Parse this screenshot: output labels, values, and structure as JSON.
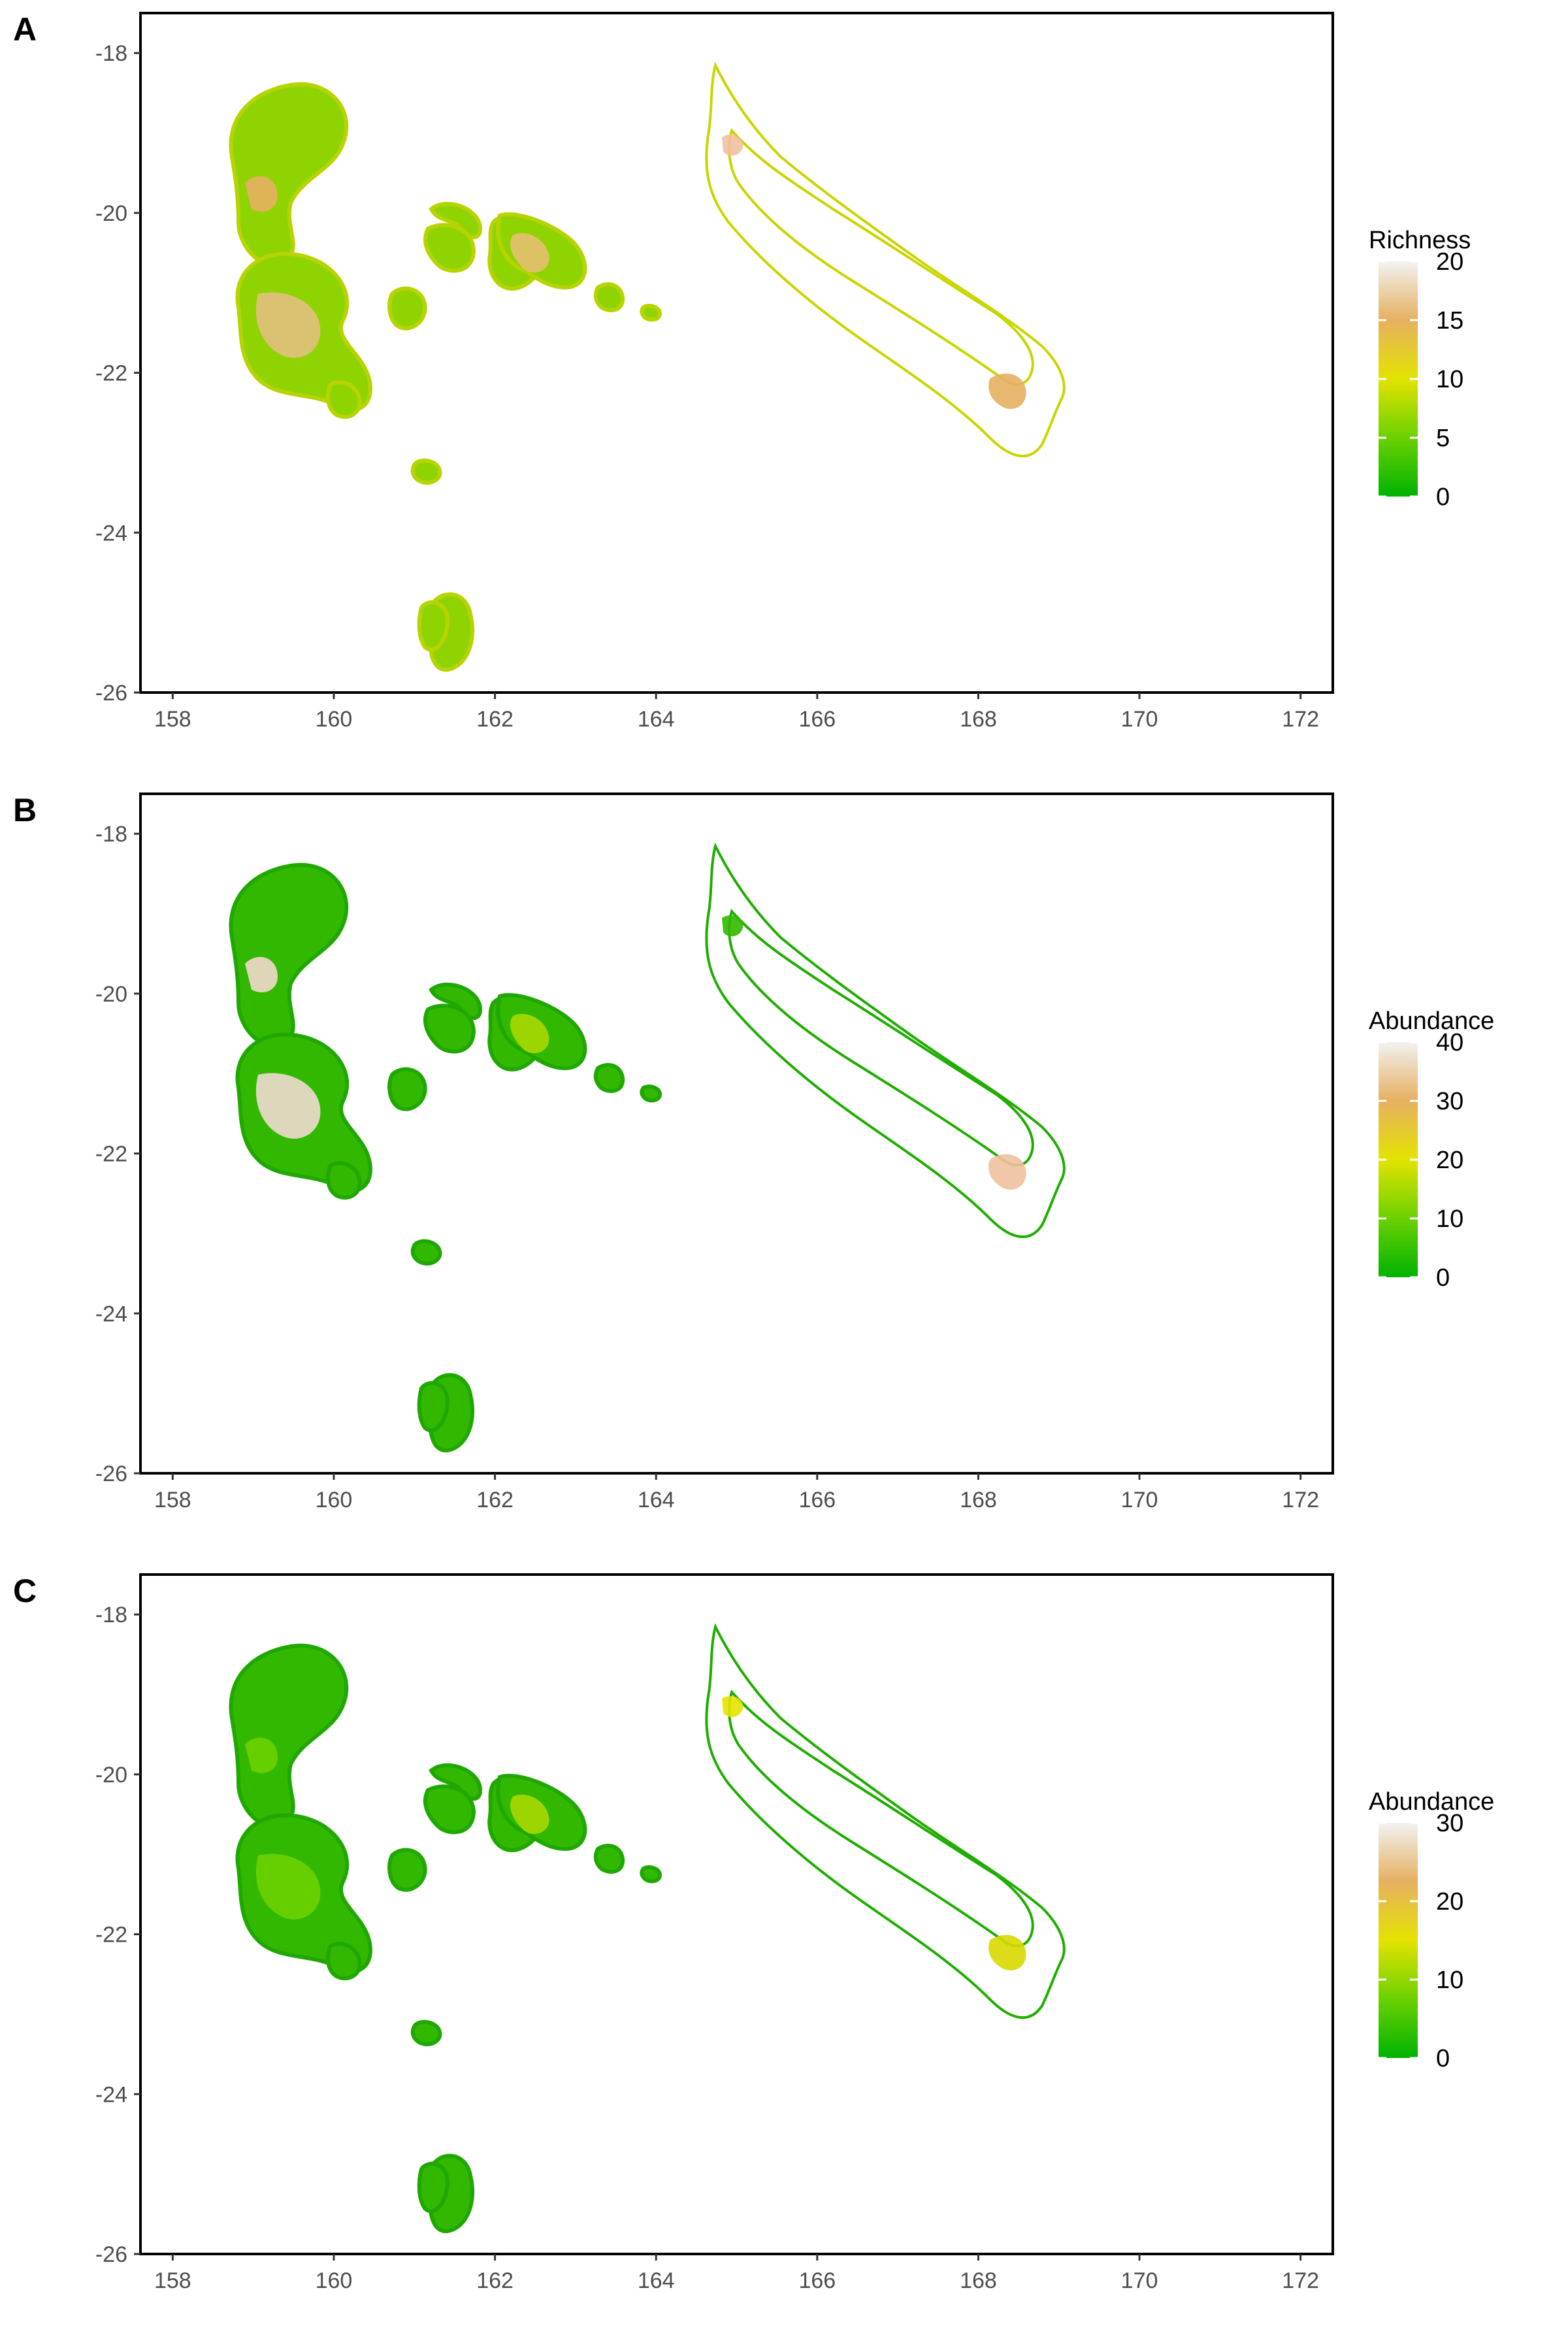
{
  "chart_data": [
    {
      "type": "heatmap",
      "panel_label": "A",
      "legend_title": "Richness",
      "legend_ticks": [
        20,
        15,
        10,
        5,
        0
      ],
      "scale_range": [
        0,
        20
      ],
      "x_ticks": [
        "158",
        "160",
        "162",
        "164",
        "166",
        "168",
        "170",
        "172"
      ],
      "y_ticks": [
        "-18",
        "-20",
        "-22",
        "-24",
        "-26"
      ],
      "xlim": [
        157.6,
        172.4
      ],
      "ylim": [
        -26,
        -17.5
      ],
      "color_scale": [
        "#00b300",
        "#6bd100",
        "#e3e300",
        "#e6b060",
        "#f2f2f2"
      ]
    },
    {
      "type": "heatmap",
      "panel_label": "B",
      "legend_title": "Abundance",
      "legend_ticks": [
        40,
        30,
        20,
        10,
        0
      ],
      "scale_range": [
        0,
        40
      ],
      "x_ticks": [
        "158",
        "160",
        "162",
        "164",
        "166",
        "168",
        "170",
        "172"
      ],
      "y_ticks": [
        "-18",
        "-20",
        "-22",
        "-24",
        "-26"
      ],
      "xlim": [
        157.6,
        172.4
      ],
      "ylim": [
        -26,
        -17.5
      ],
      "color_scale": [
        "#00b300",
        "#6bd100",
        "#e3e300",
        "#e6b060",
        "#f2f2f2"
      ]
    },
    {
      "type": "heatmap",
      "panel_label": "C",
      "legend_title": "Abundance",
      "legend_ticks": [
        30,
        20,
        10,
        0
      ],
      "scale_range": [
        0,
        30
      ],
      "x_ticks": [
        "158",
        "160",
        "162",
        "164",
        "166",
        "168",
        "170",
        "172"
      ],
      "y_ticks": [
        "-18",
        "-20",
        "-22",
        "-24",
        "-26"
      ],
      "xlim": [
        157.6,
        172.4
      ],
      "ylim": [
        -26,
        -17.5
      ],
      "color_scale": [
        "#00b300",
        "#6bd100",
        "#e3e300",
        "#e6b060",
        "#f2f2f2"
      ]
    }
  ]
}
